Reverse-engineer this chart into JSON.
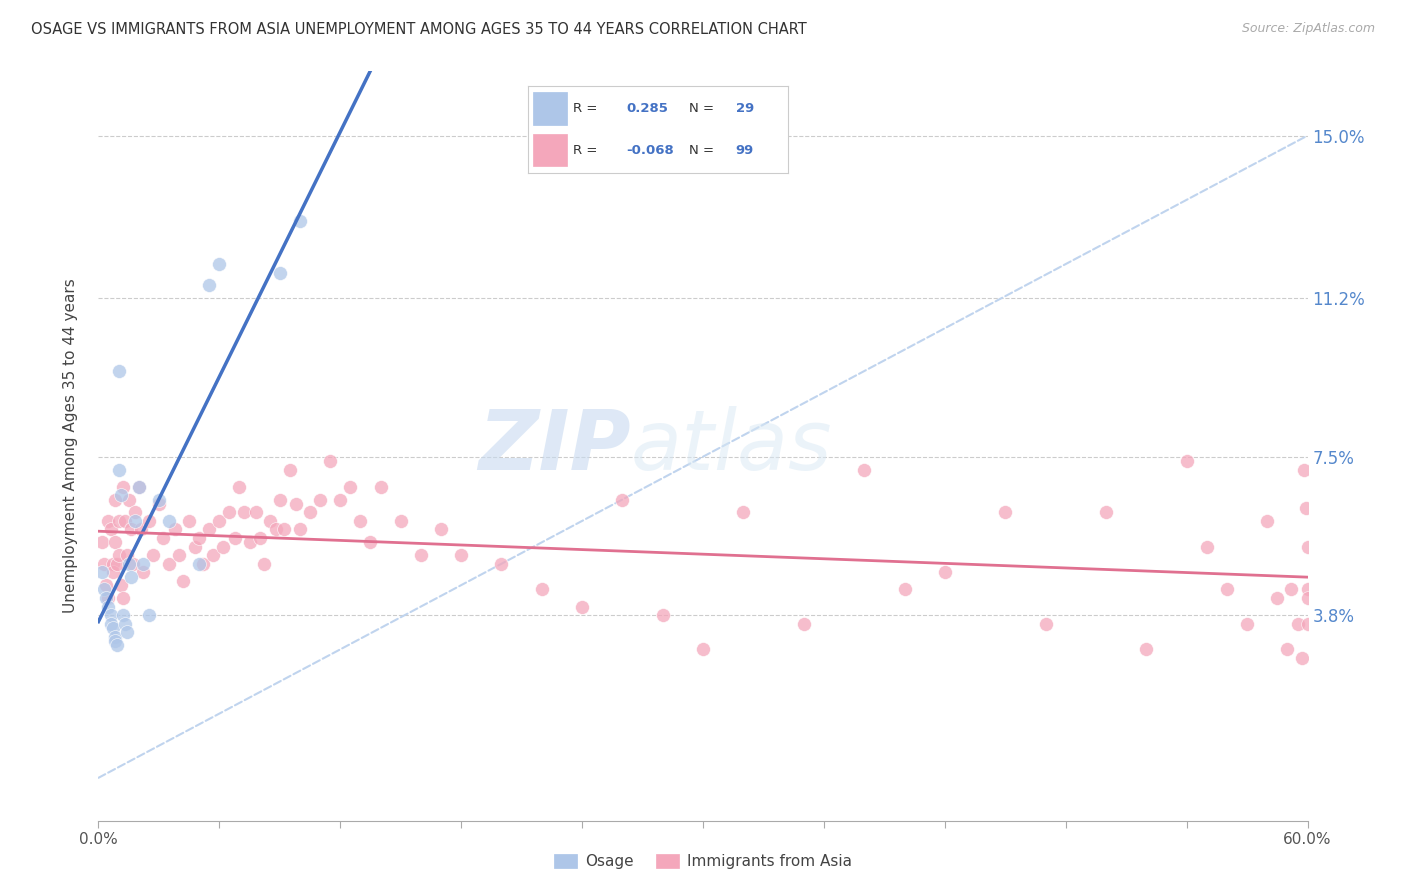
{
  "title": "OSAGE VS IMMIGRANTS FROM ASIA UNEMPLOYMENT AMONG AGES 35 TO 44 YEARS CORRELATION CHART",
  "source": "Source: ZipAtlas.com",
  "ylabel": "Unemployment Among Ages 35 to 44 years",
  "yaxis_labels": [
    "3.8%",
    "7.5%",
    "11.2%",
    "15.0%"
  ],
  "yaxis_values": [
    0.038,
    0.075,
    0.112,
    0.15
  ],
  "xlim": [
    0.0,
    0.6
  ],
  "ylim": [
    -0.01,
    0.165
  ],
  "r_osage": "0.285",
  "n_osage": "29",
  "r_asia": "-0.068",
  "n_asia": "99",
  "osage_fill_color": "#aec6e8",
  "asia_fill_color": "#f4a7bb",
  "line_osage_color": "#4472c4",
  "line_asia_color": "#e07090",
  "dashed_line_color": "#c0d4ee",
  "legend_label_osage": "Osage",
  "legend_label_asia": "Immigrants from Asia",
  "watermark_zip": "ZIP",
  "watermark_atlas": "atlas",
  "osage_x": [
    0.002,
    0.003,
    0.004,
    0.005,
    0.006,
    0.006,
    0.007,
    0.008,
    0.008,
    0.009,
    0.01,
    0.01,
    0.011,
    0.012,
    0.013,
    0.014,
    0.015,
    0.016,
    0.018,
    0.02,
    0.022,
    0.025,
    0.03,
    0.035,
    0.05,
    0.055,
    0.06,
    0.09,
    0.1
  ],
  "osage_y": [
    0.048,
    0.044,
    0.042,
    0.04,
    0.038,
    0.036,
    0.035,
    0.033,
    0.032,
    0.031,
    0.095,
    0.072,
    0.066,
    0.038,
    0.036,
    0.034,
    0.05,
    0.047,
    0.06,
    0.068,
    0.05,
    0.038,
    0.065,
    0.06,
    0.05,
    0.115,
    0.12,
    0.118,
    0.13
  ],
  "asia_x": [
    0.002,
    0.003,
    0.004,
    0.005,
    0.005,
    0.006,
    0.007,
    0.007,
    0.008,
    0.008,
    0.009,
    0.01,
    0.01,
    0.011,
    0.012,
    0.012,
    0.013,
    0.014,
    0.015,
    0.016,
    0.017,
    0.018,
    0.02,
    0.021,
    0.022,
    0.025,
    0.027,
    0.03,
    0.032,
    0.035,
    0.038,
    0.04,
    0.042,
    0.045,
    0.048,
    0.05,
    0.052,
    0.055,
    0.057,
    0.06,
    0.062,
    0.065,
    0.068,
    0.07,
    0.072,
    0.075,
    0.078,
    0.08,
    0.082,
    0.085,
    0.088,
    0.09,
    0.092,
    0.095,
    0.098,
    0.1,
    0.105,
    0.11,
    0.115,
    0.12,
    0.125,
    0.13,
    0.135,
    0.14,
    0.15,
    0.16,
    0.17,
    0.18,
    0.2,
    0.22,
    0.24,
    0.26,
    0.28,
    0.3,
    0.32,
    0.35,
    0.38,
    0.4,
    0.42,
    0.45,
    0.47,
    0.5,
    0.52,
    0.54,
    0.55,
    0.56,
    0.57,
    0.58,
    0.585,
    0.59,
    0.592,
    0.595,
    0.597,
    0.598,
    0.599,
    0.6,
    0.6,
    0.6,
    0.6
  ],
  "asia_y": [
    0.055,
    0.05,
    0.045,
    0.042,
    0.06,
    0.058,
    0.05,
    0.048,
    0.065,
    0.055,
    0.05,
    0.06,
    0.052,
    0.045,
    0.042,
    0.068,
    0.06,
    0.052,
    0.065,
    0.058,
    0.05,
    0.062,
    0.068,
    0.058,
    0.048,
    0.06,
    0.052,
    0.064,
    0.056,
    0.05,
    0.058,
    0.052,
    0.046,
    0.06,
    0.054,
    0.056,
    0.05,
    0.058,
    0.052,
    0.06,
    0.054,
    0.062,
    0.056,
    0.068,
    0.062,
    0.055,
    0.062,
    0.056,
    0.05,
    0.06,
    0.058,
    0.065,
    0.058,
    0.072,
    0.064,
    0.058,
    0.062,
    0.065,
    0.074,
    0.065,
    0.068,
    0.06,
    0.055,
    0.068,
    0.06,
    0.052,
    0.058,
    0.052,
    0.05,
    0.044,
    0.04,
    0.065,
    0.038,
    0.03,
    0.062,
    0.036,
    0.072,
    0.044,
    0.048,
    0.062,
    0.036,
    0.062,
    0.03,
    0.074,
    0.054,
    0.044,
    0.036,
    0.06,
    0.042,
    0.03,
    0.044,
    0.036,
    0.028,
    0.072,
    0.063,
    0.054,
    0.036,
    0.044,
    0.042
  ]
}
